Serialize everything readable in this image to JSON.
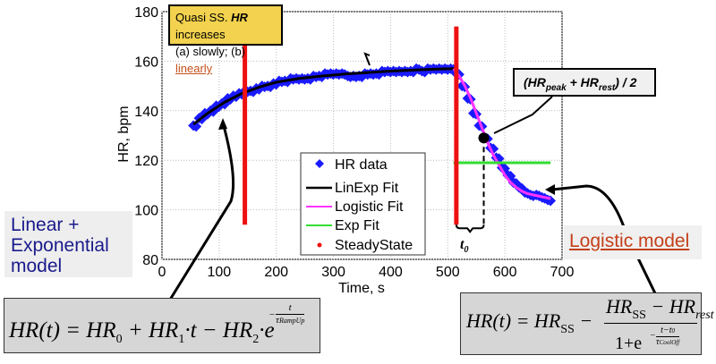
{
  "chart_data": {
    "type": "scatter",
    "xlabel": "Time, s",
    "ylabel": "HR, bpm",
    "xlim": [
      0,
      700
    ],
    "ylim": [
      80,
      180
    ],
    "xticks": [
      "0",
      "100",
      "200",
      "300",
      "400",
      "500",
      "600",
      "700"
    ],
    "yticks": [
      "80",
      "100",
      "120",
      "140",
      "160",
      "180"
    ],
    "grid": true,
    "legend_position": "center-right",
    "legend": [
      "HR data",
      "LinExp Fit",
      "Logistic Fit",
      "Exp Fit",
      "SteadyState"
    ],
    "colors": {
      "hr": "#1a1aff",
      "linexp": "#000000",
      "logistic": "#ff33ff",
      "exp": "#33dd33",
      "steady": "#ee1111"
    },
    "series": [
      {
        "name": "HR data",
        "x": [
          55,
          65,
          75,
          85,
          95,
          105,
          115,
          125,
          135,
          145,
          155,
          165,
          175,
          185,
          195,
          205,
          215,
          225,
          235,
          245,
          255,
          265,
          275,
          285,
          295,
          305,
          315,
          325,
          335,
          345,
          355,
          365,
          375,
          385,
          395,
          405,
          415,
          425,
          435,
          445,
          455,
          465,
          475,
          485,
          495,
          505,
          515,
          525,
          535,
          545,
          555,
          565,
          575,
          585,
          595,
          605,
          615,
          625,
          635,
          645,
          655,
          665,
          675
        ],
        "y": [
          134,
          137,
          139,
          140,
          142,
          143,
          145,
          146,
          147,
          148,
          148,
          149,
          150,
          150,
          151,
          152,
          152,
          153,
          153,
          153,
          153,
          154,
          154,
          155,
          155,
          155,
          155,
          154,
          154,
          154,
          155,
          155,
          155,
          156,
          156,
          156,
          156,
          156,
          156,
          157,
          156,
          157,
          157,
          157,
          157,
          157,
          155,
          150,
          145,
          139,
          134,
          129,
          125,
          121,
          117,
          114,
          111,
          109,
          107,
          106,
          106,
          105,
          104
        ]
      },
      {
        "name": "LinExp Fit",
        "x": [
          55,
          80,
          110,
          140,
          170,
          200,
          240,
          280,
          320,
          360,
          400,
          440,
          480,
          515
        ],
        "y": [
          134.5,
          139,
          143.5,
          147,
          149.5,
          151.5,
          153,
          154,
          154.8,
          155.4,
          156,
          156.4,
          156.8,
          157
        ]
      },
      {
        "name": "Logistic Fit",
        "x": [
          510,
          520,
          530,
          540,
          550,
          560,
          570,
          580,
          590,
          600,
          610,
          620,
          630,
          640,
          650,
          660,
          670,
          680
        ],
        "y": [
          157,
          154,
          150,
          145,
          139,
          133,
          127,
          122,
          118,
          114,
          111,
          109,
          107.5,
          106.5,
          106,
          105.5,
          105,
          104.5
        ]
      },
      {
        "name": "Exp Fit",
        "x": [
          510,
          680
        ],
        "y": [
          119,
          119
        ]
      },
      {
        "name": "SteadyState",
        "x": [
          145,
          145,
          515,
          515
        ],
        "y": [
          94,
          174,
          94,
          174
        ]
      }
    ],
    "midpoint": {
      "x": 563,
      "y": 129
    },
    "t0_label": "t",
    "t0_sub": "0"
  },
  "annotations": {
    "quasi_line1_a": "Quasi SS. ",
    "quasi_line1_b": "HR",
    "quasi_line1_c": " increases",
    "quasi_line2_a": "(a) slowly; (b) ",
    "quasi_line2_b": "linearly",
    "peak_a": "(HR",
    "peak_b": "peak",
    "peak_c": " + HR",
    "peak_d": "rest",
    "peak_e": ") / 2",
    "linear_model": "Linear + Exponential model",
    "logistic_model": "Logistic model"
  },
  "formulas": {
    "linexp": {
      "lhs": "HR(t) = HR",
      "s0": "0",
      "p1": " + HR",
      "s1": "1",
      "p2": "·t − HR",
      "s2": "2",
      "p3": "·e",
      "exp_num": "t",
      "exp_den": "τ",
      "exp_den_sub": "RampUp"
    },
    "logistic": {
      "lhs": "HR(t) = HR",
      "sSS": "SS",
      "minus": " − ",
      "num_a": "HR",
      "num_sub": "SS",
      "num_b": " − HR",
      "num_sub2": "rest",
      "den": "1+e",
      "exp_num": "t−t",
      "exp_num_sub": "0",
      "exp_den": "τ",
      "exp_den_sub": "CoolOff"
    }
  }
}
